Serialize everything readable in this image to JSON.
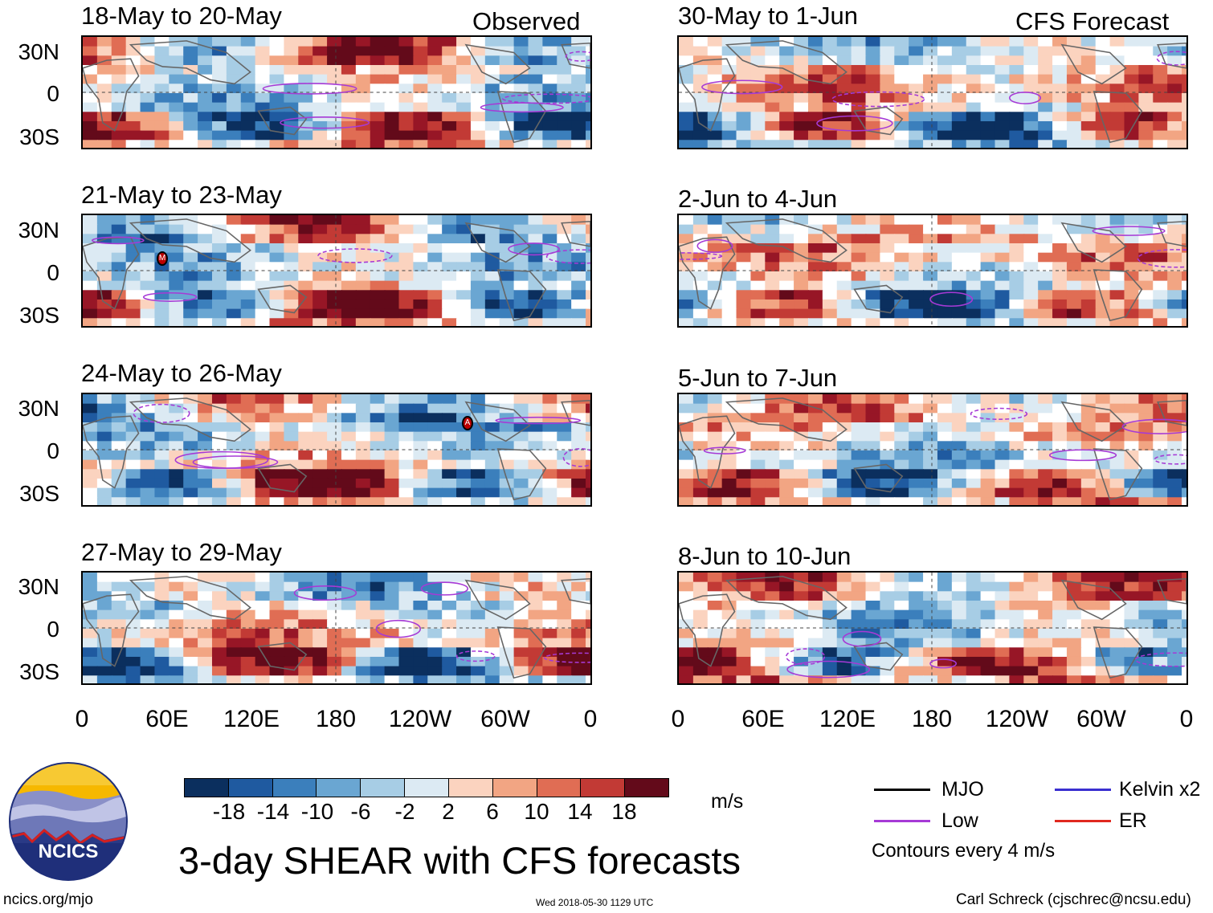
{
  "observed_label": "Observed",
  "forecast_label": "CFS Forecast",
  "panels_left": [
    {
      "title": "18-May to 20-May"
    },
    {
      "title": "21-May to 23-May"
    },
    {
      "title": "24-May to 26-May"
    },
    {
      "title": "27-May to 29-May"
    }
  ],
  "panels_right": [
    {
      "title": "30-May to 1-Jun"
    },
    {
      "title": "2-Jun to 4-Jun"
    },
    {
      "title": "5-Jun to 7-Jun"
    },
    {
      "title": "8-Jun to 10-Jun"
    }
  ],
  "lat_labels": [
    "30N",
    "0",
    "30S"
  ],
  "lon_labels": [
    "0",
    "60E",
    "120E",
    "180",
    "120W",
    "60W",
    "0"
  ],
  "storm_markers": [
    {
      "panel": "21-May to 23-May",
      "symbol": "M"
    },
    {
      "panel": "24-May to 26-May",
      "symbol": "A"
    }
  ],
  "colorbar": {
    "ticks": [
      "-18",
      "-14",
      "-10",
      "-6",
      "-2",
      "2",
      "6",
      "10",
      "14",
      "18"
    ],
    "colors": [
      "#0b2f5e",
      "#1f5aa0",
      "#3b7fbc",
      "#6aa6d2",
      "#a7cde5",
      "#dceaf3",
      "#ffffff",
      "#fbd3bf",
      "#f2a583",
      "#e06d54",
      "#c23a35",
      "#971626",
      "#630a1a"
    ],
    "units": "m/s"
  },
  "title": "3-day SHEAR with CFS forecasts",
  "legend": {
    "mjo": {
      "label": "MJO",
      "color": "#000000"
    },
    "low": {
      "label": "Low",
      "color": "#a63ad6"
    },
    "kelvin": {
      "label": "Kelvin x2",
      "color": "#3a2fd0"
    },
    "er": {
      "label": "ER",
      "color": "#e0281f"
    },
    "contours": "Contours every 4 m/s"
  },
  "logo_text": "NCICS",
  "footer": {
    "url": "ncics.org/mjo",
    "timestamp": "Wed 2018-05-30 1129 UTC",
    "credit": "Carl Schreck (cjschrec@ncsu.edu)"
  }
}
